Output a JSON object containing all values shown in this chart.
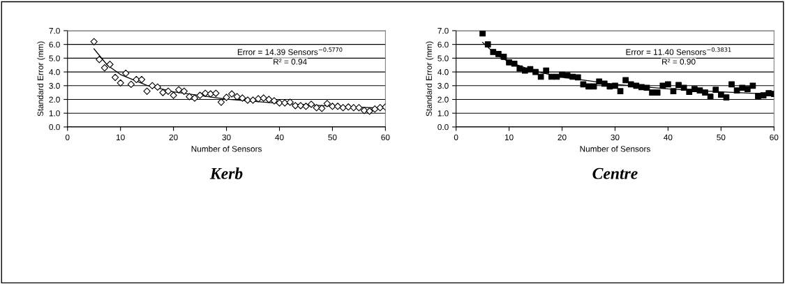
{
  "chart_data": [
    {
      "type": "scatter",
      "title": "Kerb",
      "xlabel": "Number of Sensors",
      "ylabel": "Standard Error (mm)",
      "annotations": [
        "Error = 14.39 Sensors$^{−0.5770}$",
        "R² = 0.94"
      ],
      "xlim": [
        0,
        60
      ],
      "ylim": [
        0,
        7
      ],
      "xticks": [
        0,
        10,
        20,
        30,
        40,
        50,
        60
      ],
      "yticks": [
        {
          "value": 0,
          "label": "0.0"
        },
        {
          "value": 1,
          "label": "1.0"
        },
        {
          "value": 2,
          "label": "2.0"
        },
        {
          "value": 3,
          "label": "3.0"
        },
        {
          "value": 4,
          "label": "4.0"
        },
        {
          "value": 5,
          "label": "5.0"
        },
        {
          "value": 6,
          "label": "6.0"
        },
        {
          "value": 7,
          "label": "7.0"
        }
      ],
      "grid": "y",
      "legend": false,
      "marker": "diamond",
      "series": [
        {
          "color": "#000000",
          "x": [
            5,
            6,
            7,
            8,
            9,
            10,
            11,
            12,
            13,
            14,
            15,
            16,
            17,
            18,
            19,
            20,
            21,
            22,
            23,
            24,
            25,
            26,
            27,
            28,
            29,
            30,
            31,
            32,
            33,
            34,
            35,
            36,
            37,
            38,
            39,
            40,
            41,
            42,
            43,
            44,
            45,
            46,
            47,
            48,
            49,
            50,
            51,
            52,
            53,
            54,
            55,
            56,
            57,
            58,
            59,
            60
          ],
          "values": [
            6.2,
            4.9,
            4.3,
            4.55,
            3.6,
            3.2,
            3.9,
            3.1,
            3.45,
            3.45,
            2.6,
            3.0,
            2.9,
            2.5,
            2.6,
            2.3,
            2.7,
            2.6,
            2.2,
            2.1,
            2.3,
            2.45,
            2.4,
            2.45,
            1.8,
            2.15,
            2.4,
            2.2,
            2.1,
            1.95,
            1.95,
            2.05,
            2.1,
            2.0,
            1.9,
            1.75,
            1.75,
            1.8,
            1.55,
            1.55,
            1.5,
            1.65,
            1.4,
            1.35,
            1.7,
            1.5,
            1.5,
            1.4,
            1.45,
            1.4,
            1.4,
            1.2,
            1.15,
            1.3,
            1.4,
            1.45
          ]
        },
        {
          "type": "line",
          "color": "#000000",
          "marker": "none",
          "x": [
            5,
            7.5,
            10,
            15,
            20,
            30,
            40,
            50,
            60
          ],
          "values": [
            5.68,
            4.5,
            3.81,
            3.02,
            2.55,
            2.02,
            1.71,
            1.51,
            1.36
          ]
        }
      ]
    },
    {
      "type": "scatter",
      "title": "Centre",
      "xlabel": "Number of Sensors",
      "ylabel": "Standard Error (mm)",
      "annotations": [
        "Error = 11.40 Sensors$^{−0.3831}$",
        "R² = 0.90"
      ],
      "xlim": [
        0,
        60
      ],
      "ylim": [
        0,
        7
      ],
      "xticks": [
        0,
        10,
        20,
        30,
        40,
        50,
        60
      ],
      "yticks": [
        {
          "value": 0,
          "label": "0.0"
        },
        {
          "value": 1,
          "label": "1.0"
        },
        {
          "value": 2,
          "label": "2.0"
        },
        {
          "value": 3,
          "label": "3.0"
        },
        {
          "value": 4,
          "label": "4.0"
        },
        {
          "value": 5,
          "label": "5.0"
        },
        {
          "value": 6,
          "label": "6.0"
        },
        {
          "value": 7,
          "label": "7.0"
        }
      ],
      "grid": "y",
      "legend": false,
      "marker": "square",
      "series": [
        {
          "color": "#000000",
          "x": [
            5,
            6,
            7,
            8,
            9,
            10,
            11,
            12,
            13,
            14,
            15,
            16,
            17,
            18,
            19,
            20,
            21,
            22,
            23,
            24,
            25,
            26,
            27,
            28,
            29,
            30,
            31,
            32,
            33,
            34,
            35,
            36,
            37,
            38,
            39,
            40,
            41,
            42,
            43,
            44,
            45,
            46,
            47,
            48,
            49,
            50,
            51,
            52,
            53,
            54,
            55,
            56,
            57,
            58,
            59,
            60
          ],
          "values": [
            6.8,
            6.0,
            5.45,
            5.3,
            5.1,
            4.7,
            4.6,
            4.25,
            4.1,
            4.2,
            4.0,
            3.65,
            4.1,
            3.65,
            3.65,
            3.8,
            3.75,
            3.65,
            3.6,
            3.1,
            2.95,
            2.95,
            3.3,
            3.15,
            2.95,
            3.0,
            2.6,
            3.4,
            3.1,
            3.0,
            2.9,
            2.85,
            2.5,
            2.5,
            3.0,
            3.1,
            2.6,
            3.05,
            2.85,
            2.55,
            2.75,
            2.65,
            2.5,
            2.2,
            2.7,
            2.35,
            2.15,
            3.1,
            2.65,
            2.85,
            2.75,
            3.0,
            2.25,
            2.3,
            2.45,
            2.4
          ]
        },
        {
          "type": "line",
          "color": "#000000",
          "marker": "none",
          "x": [
            5,
            7.5,
            10,
            15,
            20,
            30,
            40,
            50,
            60
          ],
          "values": [
            6.15,
            5.27,
            4.72,
            4.04,
            3.62,
            3.1,
            2.77,
            2.55,
            2.38
          ]
        }
      ]
    }
  ]
}
